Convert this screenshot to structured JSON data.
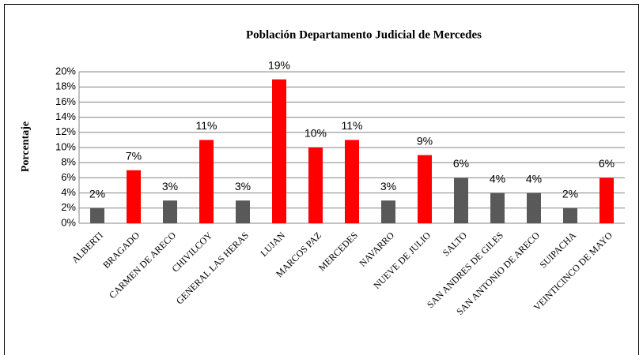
{
  "chart_data": {
    "type": "bar",
    "title": "Población Departamento Judicial de Mercedes",
    "y_label": "Porcentaje",
    "categories": [
      "ALBERTI",
      "BRAGADO",
      "CARMEN DE ARECO",
      "CHIVILCOY",
      "GENERAL LAS HERAS",
      "LUJAN",
      "MARCOS PAZ",
      "MERCEDES",
      "NAVARRO",
      "NUEVE DE JULIO",
      "SALTO",
      "SAN ANDRES DE GILES",
      "SAN ANTONIO DE ARECO",
      "SUIPACHA",
      "VEINTICINCO DE MAYO"
    ],
    "values": [
      2,
      7,
      3,
      11,
      3,
      19,
      10,
      11,
      3,
      9,
      6,
      4,
      4,
      2,
      6
    ],
    "value_labels": [
      "2%",
      "7%",
      "3%",
      "11%",
      "3%",
      "19%",
      "10%",
      "11%",
      "3%",
      "9%",
      "6%",
      "4%",
      "4%",
      "2%",
      "6%"
    ],
    "colors": [
      "#595959",
      "#ff0000",
      "#595959",
      "#ff0000",
      "#595959",
      "#ff0000",
      "#ff0000",
      "#ff0000",
      "#595959",
      "#ff0000",
      "#595959",
      "#595959",
      "#595959",
      "#595959",
      "#ff0000"
    ],
    "ylim": [
      0,
      20
    ],
    "yticks": [
      {
        "value": 0,
        "label": "0%"
      },
      {
        "value": 2,
        "label": "2%"
      },
      {
        "value": 4,
        "label": "4%"
      },
      {
        "value": 6,
        "label": "6%"
      },
      {
        "value": 8,
        "label": "8%"
      },
      {
        "value": 10,
        "label": "10%"
      },
      {
        "value": 12,
        "label": "12%"
      },
      {
        "value": 14,
        "label": "14%"
      },
      {
        "value": 16,
        "label": "16%"
      },
      {
        "value": 18,
        "label": "18%"
      },
      {
        "value": 20,
        "label": "20%"
      }
    ],
    "grid": true
  }
}
